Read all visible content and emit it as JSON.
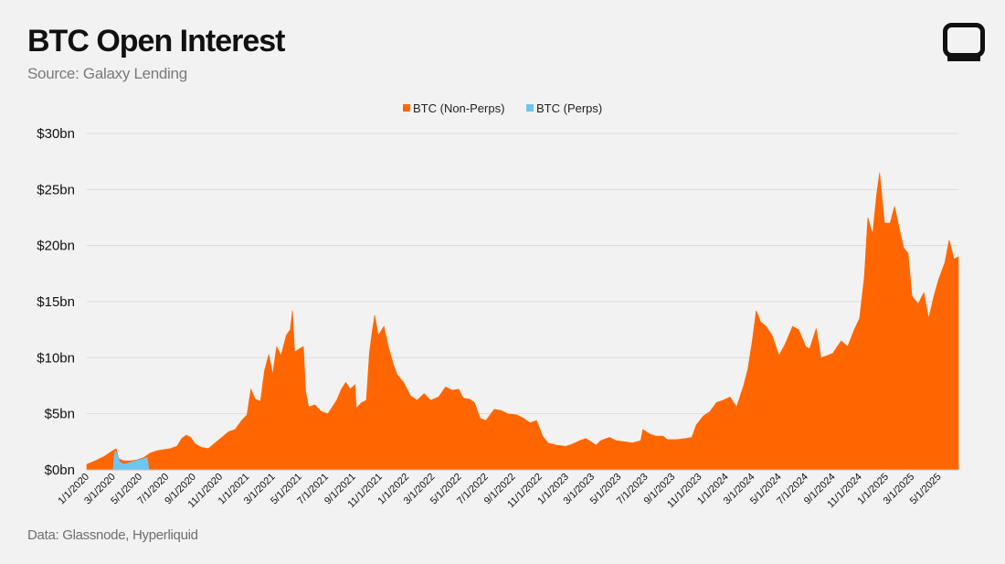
{
  "title": "BTC Open Interest",
  "subtitle": "Source: Galaxy Lending",
  "footnote": "Data: Glassnode, Hyperliquid",
  "logo_icon": "galaxy-logo-icon",
  "colors": {
    "non_perps": "#ff6600",
    "perps": "#6ec6f0",
    "grid": "#dcdcdc",
    "background": "#f2f2f2"
  },
  "chart_data": {
    "type": "area",
    "stacked": true,
    "title": "BTC Open Interest",
    "ylabel": "",
    "xlabel": "",
    "y_unit": "$bn",
    "ylim": [
      0,
      30
    ],
    "xlim": [
      "2020-01-01",
      "2025-06-15"
    ],
    "grid": true,
    "legend_position": "top-center",
    "y_ticks": [
      "$0bn",
      "$5bn",
      "$10bn",
      "$15bn",
      "$20bn",
      "$25bn",
      "$30bn"
    ],
    "y_tick_values": [
      0,
      5,
      10,
      15,
      20,
      25,
      30
    ],
    "x_ticks": [
      {
        "label": "1/1/2020",
        "date": "2020-01-01"
      },
      {
        "label": "3/1/2020",
        "date": "2020-03-01"
      },
      {
        "label": "5/1/2020",
        "date": "2020-05-01"
      },
      {
        "label": "7/1/2020",
        "date": "2020-07-01"
      },
      {
        "label": "9/1/2020",
        "date": "2020-09-01"
      },
      {
        "label": "11/1/2020",
        "date": "2020-11-01"
      },
      {
        "label": "1/1/2021",
        "date": "2021-01-01"
      },
      {
        "label": "3/1/2021",
        "date": "2021-03-01"
      },
      {
        "label": "5/1/2021",
        "date": "2021-05-01"
      },
      {
        "label": "7/1/2021",
        "date": "2021-07-01"
      },
      {
        "label": "9/1/2021",
        "date": "2021-09-01"
      },
      {
        "label": "11/1/2021",
        "date": "2021-11-01"
      },
      {
        "label": "1/1/2022",
        "date": "2022-01-01"
      },
      {
        "label": "3/1/2022",
        "date": "2022-03-01"
      },
      {
        "label": "5/1/2022",
        "date": "2022-05-01"
      },
      {
        "label": "7/1/2022",
        "date": "2022-07-01"
      },
      {
        "label": "9/1/2022",
        "date": "2022-09-01"
      },
      {
        "label": "11/1/2022",
        "date": "2022-11-01"
      },
      {
        "label": "1/1/2023",
        "date": "2023-01-01"
      },
      {
        "label": "3/1/2023",
        "date": "2023-03-01"
      },
      {
        "label": "5/1/2023",
        "date": "2023-05-01"
      },
      {
        "label": "7/1/2023",
        "date": "2023-07-01"
      },
      {
        "label": "9/1/2023",
        "date": "2023-09-01"
      },
      {
        "label": "11/1/2023",
        "date": "2023-11-01"
      },
      {
        "label": "1/1/2024",
        "date": "2024-01-01"
      },
      {
        "label": "3/1/2024",
        "date": "2024-03-01"
      },
      {
        "label": "5/1/2024",
        "date": "2024-05-01"
      },
      {
        "label": "7/1/2024",
        "date": "2024-07-01"
      },
      {
        "label": "9/1/2024",
        "date": "2024-09-01"
      },
      {
        "label": "11/1/2024",
        "date": "2024-11-01"
      },
      {
        "label": "1/1/2025",
        "date": "2025-01-01"
      },
      {
        "label": "3/1/2025",
        "date": "2025-03-01"
      },
      {
        "label": "5/1/2025",
        "date": "2025-05-01"
      }
    ],
    "series": [
      {
        "name": "BTC (Non-Perps)",
        "color": "#ff6600",
        "points": [
          [
            "2020-01-01",
            0.5
          ],
          [
            "2020-01-20",
            0.8
          ],
          [
            "2020-02-10",
            1.2
          ],
          [
            "2020-02-25",
            1.6
          ],
          [
            "2020-03-08",
            1.9
          ],
          [
            "2020-03-14",
            1.0
          ],
          [
            "2020-03-25",
            0.8
          ],
          [
            "2020-04-10",
            0.8
          ],
          [
            "2020-04-25",
            0.9
          ],
          [
            "2020-05-10",
            1.1
          ],
          [
            "2020-05-25",
            1.5
          ],
          [
            "2020-06-10",
            1.7
          ],
          [
            "2020-06-25",
            1.8
          ],
          [
            "2020-07-10",
            1.9
          ],
          [
            "2020-07-25",
            2.1
          ],
          [
            "2020-08-05",
            2.8
          ],
          [
            "2020-08-15",
            3.1
          ],
          [
            "2020-08-25",
            2.9
          ],
          [
            "2020-09-05",
            2.3
          ],
          [
            "2020-09-20",
            2.0
          ],
          [
            "2020-10-05",
            1.9
          ],
          [
            "2020-10-20",
            2.4
          ],
          [
            "2020-11-05",
            2.9
          ],
          [
            "2020-11-20",
            3.4
          ],
          [
            "2020-12-05",
            3.6
          ],
          [
            "2020-12-20",
            4.4
          ],
          [
            "2021-01-01",
            4.9
          ],
          [
            "2021-01-10",
            7.2
          ],
          [
            "2021-01-20",
            6.3
          ],
          [
            "2021-02-01",
            6.1
          ],
          [
            "2021-02-10",
            8.8
          ],
          [
            "2021-02-20",
            10.3
          ],
          [
            "2021-03-01",
            8.5
          ],
          [
            "2021-03-10",
            11.0
          ],
          [
            "2021-03-20",
            10.2
          ],
          [
            "2021-04-01",
            12.0
          ],
          [
            "2021-04-10",
            12.5
          ],
          [
            "2021-04-15",
            14.2
          ],
          [
            "2021-04-20",
            10.5
          ],
          [
            "2021-05-01",
            10.8
          ],
          [
            "2021-05-10",
            11.0
          ],
          [
            "2021-05-15",
            7.0
          ],
          [
            "2021-05-22",
            5.6
          ],
          [
            "2021-06-05",
            5.8
          ],
          [
            "2021-06-20",
            5.2
          ],
          [
            "2021-07-05",
            5.0
          ],
          [
            "2021-07-25",
            6.2
          ],
          [
            "2021-08-05",
            7.2
          ],
          [
            "2021-08-15",
            7.8
          ],
          [
            "2021-08-25",
            7.2
          ],
          [
            "2021-09-05",
            7.6
          ],
          [
            "2021-09-08",
            5.5
          ],
          [
            "2021-09-20",
            6.0
          ],
          [
            "2021-10-01",
            6.2
          ],
          [
            "2021-10-08",
            10.5
          ],
          [
            "2021-10-15",
            12.5
          ],
          [
            "2021-10-20",
            13.8
          ],
          [
            "2021-10-28",
            12.0
          ],
          [
            "2021-11-10",
            12.8
          ],
          [
            "2021-11-20",
            11.0
          ],
          [
            "2021-12-01",
            9.5
          ],
          [
            "2021-12-10",
            8.5
          ],
          [
            "2021-12-25",
            7.8
          ],
          [
            "2022-01-10",
            6.6
          ],
          [
            "2022-01-25",
            6.2
          ],
          [
            "2022-02-10",
            6.8
          ],
          [
            "2022-02-25",
            6.2
          ],
          [
            "2022-03-15",
            6.5
          ],
          [
            "2022-03-31",
            7.4
          ],
          [
            "2022-04-15",
            7.1
          ],
          [
            "2022-04-30",
            7.2
          ],
          [
            "2022-05-10",
            6.4
          ],
          [
            "2022-05-25",
            6.3
          ],
          [
            "2022-06-05",
            6.0
          ],
          [
            "2022-06-18",
            4.6
          ],
          [
            "2022-07-01",
            4.4
          ],
          [
            "2022-07-20",
            5.4
          ],
          [
            "2022-08-05",
            5.3
          ],
          [
            "2022-08-20",
            5.0
          ],
          [
            "2022-09-10",
            4.9
          ],
          [
            "2022-09-25",
            4.6
          ],
          [
            "2022-10-10",
            4.2
          ],
          [
            "2022-10-25",
            4.4
          ],
          [
            "2022-11-08",
            3.0
          ],
          [
            "2022-11-20",
            2.4
          ],
          [
            "2022-12-10",
            2.2
          ],
          [
            "2022-12-31",
            2.1
          ],
          [
            "2023-01-15",
            2.3
          ],
          [
            "2023-01-31",
            2.6
          ],
          [
            "2023-02-15",
            2.8
          ],
          [
            "2023-03-10",
            2.2
          ],
          [
            "2023-03-20",
            2.6
          ],
          [
            "2023-04-10",
            2.9
          ],
          [
            "2023-04-25",
            2.6
          ],
          [
            "2023-05-15",
            2.5
          ],
          [
            "2023-06-01",
            2.4
          ],
          [
            "2023-06-20",
            2.6
          ],
          [
            "2023-06-25",
            3.6
          ],
          [
            "2023-07-10",
            3.2
          ],
          [
            "2023-07-25",
            3.0
          ],
          [
            "2023-08-10",
            3.0
          ],
          [
            "2023-08-20",
            2.7
          ],
          [
            "2023-09-10",
            2.7
          ],
          [
            "2023-09-30",
            2.8
          ],
          [
            "2023-10-15",
            2.9
          ],
          [
            "2023-10-25",
            4.0
          ],
          [
            "2023-11-10",
            4.8
          ],
          [
            "2023-11-25",
            5.2
          ],
          [
            "2023-12-10",
            6.0
          ],
          [
            "2023-12-25",
            6.2
          ],
          [
            "2024-01-10",
            6.5
          ],
          [
            "2024-01-25",
            5.6
          ],
          [
            "2024-02-10",
            7.5
          ],
          [
            "2024-02-20",
            9.0
          ],
          [
            "2024-03-01",
            11.5
          ],
          [
            "2024-03-10",
            14.2
          ],
          [
            "2024-03-20",
            13.2
          ],
          [
            "2024-04-01",
            12.8
          ],
          [
            "2024-04-15",
            12.0
          ],
          [
            "2024-05-01",
            10.2
          ],
          [
            "2024-05-15",
            11.2
          ],
          [
            "2024-06-01",
            12.8
          ],
          [
            "2024-06-15",
            12.5
          ],
          [
            "2024-07-01",
            11.0
          ],
          [
            "2024-07-10",
            10.8
          ],
          [
            "2024-07-25",
            12.6
          ],
          [
            "2024-08-05",
            10.0
          ],
          [
            "2024-08-20",
            10.2
          ],
          [
            "2024-09-01",
            10.4
          ],
          [
            "2024-09-20",
            11.5
          ],
          [
            "2024-10-05",
            11.0
          ],
          [
            "2024-10-20",
            12.5
          ],
          [
            "2024-11-01",
            13.5
          ],
          [
            "2024-11-12",
            17.2
          ],
          [
            "2024-11-20",
            22.5
          ],
          [
            "2024-12-01",
            21.0
          ],
          [
            "2024-12-10",
            24.5
          ],
          [
            "2024-12-17",
            26.5
          ],
          [
            "2024-12-28",
            22.0
          ],
          [
            "2025-01-10",
            22.0
          ],
          [
            "2025-01-20",
            23.5
          ],
          [
            "2025-01-31",
            21.5
          ],
          [
            "2025-02-10",
            19.8
          ],
          [
            "2025-02-20",
            19.3
          ],
          [
            "2025-03-01",
            15.5
          ],
          [
            "2025-03-15",
            14.8
          ],
          [
            "2025-03-28",
            15.8
          ],
          [
            "2025-04-08",
            13.5
          ],
          [
            "2025-04-20",
            15.5
          ],
          [
            "2025-05-01",
            17.0
          ],
          [
            "2025-05-15",
            18.5
          ],
          [
            "2025-05-25",
            20.5
          ],
          [
            "2025-06-05",
            18.8
          ],
          [
            "2025-06-15",
            19.0
          ]
        ]
      },
      {
        "name": "BTC (Perps)",
        "color": "#6ec6f0",
        "points": [
          [
            "2020-03-01",
            0.0
          ],
          [
            "2020-03-03",
            1.0
          ],
          [
            "2020-03-06",
            1.7
          ],
          [
            "2020-03-09",
            1.5
          ],
          [
            "2020-03-12",
            1.2
          ],
          [
            "2020-03-16",
            0.7
          ],
          [
            "2020-03-25",
            0.5
          ],
          [
            "2020-04-05",
            0.6
          ],
          [
            "2020-04-20",
            0.8
          ],
          [
            "2020-05-01",
            0.9
          ],
          [
            "2020-05-10",
            1.0
          ],
          [
            "2020-05-18",
            1.1
          ],
          [
            "2020-05-22",
            0.0
          ]
        ]
      }
    ]
  }
}
